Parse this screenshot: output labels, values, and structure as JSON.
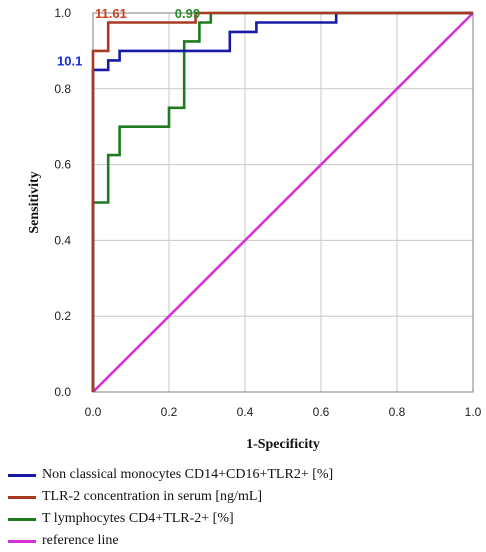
{
  "chart_data": {
    "type": "line",
    "title": "",
    "xlabel": "1-Specificity",
    "ylabel": "Sensitivity",
    "xlim": [
      0,
      1.0
    ],
    "ylim": [
      0,
      1.0
    ],
    "grid": true,
    "legend_position": "bottom",
    "x_ticks": [
      "0.0",
      "0.2",
      "0.4",
      "0.6",
      "0.8",
      "1.0"
    ],
    "y_ticks": [
      "0.0",
      "0.2",
      "0.4",
      "0.6",
      "0.8",
      "1.0"
    ],
    "series": [
      {
        "name": "Non classical monocytes CD14+CD16+TLR2+ [%]",
        "color": "#1a1aa6",
        "points": [
          [
            0,
            0
          ],
          [
            0,
            0.85
          ],
          [
            0.04,
            0.85
          ],
          [
            0.04,
            0.875
          ],
          [
            0.07,
            0.875
          ],
          [
            0.07,
            0.9
          ],
          [
            0.36,
            0.9
          ],
          [
            0.36,
            0.95
          ],
          [
            0.43,
            0.95
          ],
          [
            0.43,
            0.975
          ],
          [
            0.64,
            0.975
          ],
          [
            0.64,
            1.0
          ],
          [
            1.0,
            1.0
          ]
        ]
      },
      {
        "name": "TLR-2 concentration in serum [ng/mL]",
        "color": "#a83a22",
        "points": [
          [
            0,
            0
          ],
          [
            0,
            0.9
          ],
          [
            0.04,
            0.9
          ],
          [
            0.04,
            0.975
          ],
          [
            0.27,
            0.975
          ],
          [
            0.27,
            1.0
          ],
          [
            1.0,
            1.0
          ]
        ]
      },
      {
        "name": "T lymphocytes CD4+TLR-2+ [%]",
        "color": "#207a20",
        "points": [
          [
            0,
            0
          ],
          [
            0,
            0.5
          ],
          [
            0.04,
            0.5
          ],
          [
            0.04,
            0.625
          ],
          [
            0.07,
            0.625
          ],
          [
            0.07,
            0.7
          ],
          [
            0.2,
            0.7
          ],
          [
            0.2,
            0.75
          ],
          [
            0.24,
            0.75
          ],
          [
            0.24,
            0.925
          ],
          [
            0.28,
            0.925
          ],
          [
            0.28,
            0.975
          ],
          [
            0.31,
            0.975
          ],
          [
            0.31,
            1.0
          ],
          [
            1.0,
            1.0
          ]
        ]
      },
      {
        "name": "reference line",
        "color": "#d633d6",
        "points": [
          [
            0,
            0
          ],
          [
            1.0,
            1.0
          ]
        ]
      }
    ],
    "annotations": [
      {
        "text": "11.61",
        "color": "#c8401e",
        "x": 0.0,
        "y": 1.0,
        "align": "left"
      },
      {
        "text": "0.99",
        "color": "#2a8a2a",
        "x": 0.21,
        "y": 1.0,
        "align": "left"
      },
      {
        "text": "10.1",
        "color": "#1a2bd0",
        "x": -0.1,
        "y": 0.875,
        "align": "left"
      }
    ]
  }
}
